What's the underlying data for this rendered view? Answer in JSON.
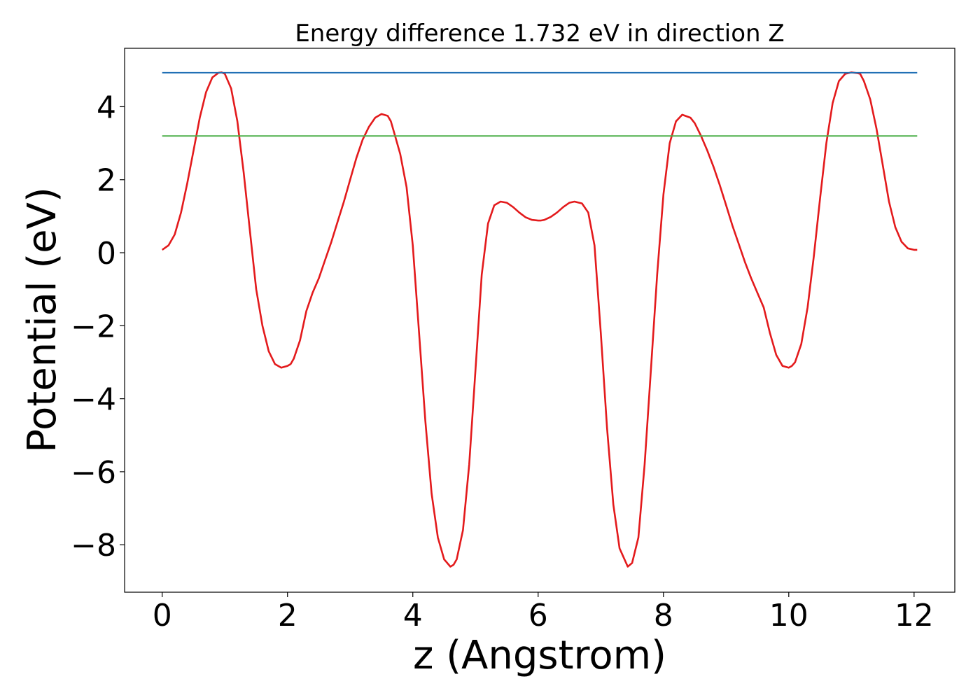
{
  "chart_data": {
    "type": "line",
    "title": "Energy difference 1.732 eV in direction Z",
    "xlabel": "z (Angstrom)",
    "ylabel": "Potential (eV)",
    "xlim": [
      -0.6,
      12.65
    ],
    "ylim": [
      -9.3,
      5.6
    ],
    "xticks": [
      0,
      2,
      4,
      6,
      8,
      10,
      12
    ],
    "xtick_labels": [
      "0",
      "2",
      "4",
      "6",
      "8",
      "10",
      "12"
    ],
    "yticks": [
      -8,
      -6,
      -4,
      -2,
      0,
      2,
      4
    ],
    "ytick_labels": [
      "−8",
      "−6",
      "−4",
      "−2",
      "0",
      "2",
      "4"
    ],
    "grid": false,
    "legend": "none",
    "series": [
      {
        "color": "#e31a1c",
        "x": [
          0,
          0.1,
          0.2,
          0.3,
          0.4,
          0.5,
          0.6,
          0.7,
          0.8,
          0.9,
          0.95,
          1.0,
          1.1,
          1.2,
          1.3,
          1.4,
          1.5,
          1.6,
          1.7,
          1.8,
          1.9,
          2.0,
          2.05,
          2.1,
          2.2,
          2.3,
          2.4,
          2.5,
          2.6,
          2.7,
          2.8,
          2.9,
          3.0,
          3.1,
          3.2,
          3.3,
          3.4,
          3.5,
          3.6,
          3.65,
          3.7,
          3.8,
          3.9,
          4.0,
          4.1,
          4.2,
          4.3,
          4.4,
          4.5,
          4.6,
          4.65,
          4.7,
          4.8,
          4.9,
          5.0,
          5.1,
          5.2,
          5.3,
          5.4,
          5.5,
          5.6,
          5.7,
          5.8,
          5.9,
          6.0,
          6.04,
          6.1,
          6.2,
          6.3,
          6.4,
          6.5,
          6.58,
          6.7,
          6.8,
          6.9,
          7.0,
          7.1,
          7.2,
          7.3,
          7.43,
          7.5,
          7.6,
          7.7,
          7.8,
          7.9,
          8.0,
          8.1,
          8.2,
          8.3,
          8.43,
          8.5,
          8.6,
          8.7,
          8.8,
          8.9,
          9.0,
          9.1,
          9.2,
          9.3,
          9.4,
          9.5,
          9.6,
          9.7,
          9.8,
          9.9,
          10.0,
          10.05,
          10.1,
          10.2,
          10.3,
          10.4,
          10.5,
          10.6,
          10.7,
          10.8,
          10.9,
          11.0,
          11.1,
          11.14,
          11.2,
          11.3,
          11.4,
          11.5,
          11.6,
          11.7,
          11.8,
          11.9,
          12.0,
          12.05
        ],
        "y": [
          0.08,
          0.2,
          0.5,
          1.1,
          1.9,
          2.8,
          3.7,
          4.4,
          4.8,
          4.93,
          4.94,
          4.9,
          4.5,
          3.6,
          2.2,
          0.6,
          -1.0,
          -2.0,
          -2.7,
          -3.05,
          -3.15,
          -3.1,
          -3.05,
          -2.9,
          -2.4,
          -1.6,
          -1.1,
          -0.7,
          -0.2,
          0.3,
          0.85,
          1.4,
          2.0,
          2.6,
          3.1,
          3.45,
          3.7,
          3.8,
          3.75,
          3.6,
          3.3,
          2.7,
          1.8,
          0.2,
          -2.2,
          -4.6,
          -6.6,
          -7.8,
          -8.4,
          -8.6,
          -8.55,
          -8.4,
          -7.6,
          -5.8,
          -3.2,
          -0.6,
          0.8,
          1.3,
          1.4,
          1.37,
          1.25,
          1.1,
          0.97,
          0.9,
          0.88,
          0.88,
          0.9,
          0.98,
          1.1,
          1.25,
          1.37,
          1.4,
          1.35,
          1.1,
          0.2,
          -2.2,
          -4.8,
          -6.9,
          -8.1,
          -8.6,
          -8.5,
          -7.8,
          -5.8,
          -3.2,
          -0.6,
          1.6,
          3.0,
          3.6,
          3.78,
          3.7,
          3.55,
          3.2,
          2.8,
          2.35,
          1.85,
          1.3,
          0.75,
          0.25,
          -0.25,
          -0.7,
          -1.1,
          -1.5,
          -2.2,
          -2.8,
          -3.1,
          -3.15,
          -3.1,
          -3.0,
          -2.5,
          -1.5,
          -0.1,
          1.5,
          3.0,
          4.1,
          4.7,
          4.9,
          4.94,
          4.92,
          4.9,
          4.7,
          4.2,
          3.4,
          2.4,
          1.4,
          0.7,
          0.3,
          0.12,
          0.08,
          0.08
        ]
      },
      {
        "color": "#1f6fb4",
        "x": [
          0,
          12.05
        ],
        "y": [
          4.93,
          4.93
        ]
      },
      {
        "color": "#4daf4a",
        "x": [
          0,
          12.05
        ],
        "y": [
          3.2,
          3.2
        ]
      }
    ]
  }
}
